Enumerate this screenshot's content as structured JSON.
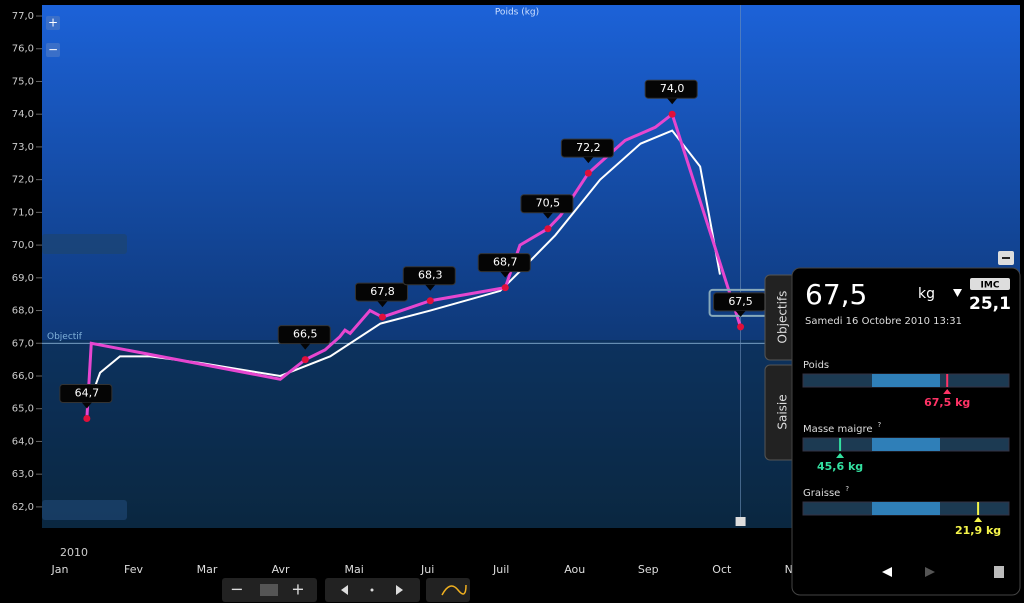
{
  "chart": {
    "type": "line",
    "title": "Poids (kg)",
    "year": "2010",
    "categories": [
      "Jan",
      "Fev",
      "Mar",
      "Avr",
      "Mai",
      "Jui",
      "Juil",
      "Aou",
      "Sep",
      "Oct",
      "Nov"
    ],
    "xlim": [
      0,
      13.3
    ],
    "ylim": [
      61.3,
      77.3
    ],
    "yticks": [
      {
        "value": 62,
        "label": "62,0"
      },
      {
        "value": 63,
        "label": "63,0"
      },
      {
        "value": 64,
        "label": "64,0"
      },
      {
        "value": 65,
        "label": "65,0"
      },
      {
        "value": 66,
        "label": "66,0"
      },
      {
        "value": 67,
        "label": "67,0"
      },
      {
        "value": 68,
        "label": "68,0"
      },
      {
        "value": 69,
        "label": "69,0"
      },
      {
        "value": 70,
        "label": "70,0"
      },
      {
        "value": 71,
        "label": "71,0"
      },
      {
        "value": 72,
        "label": "72,0"
      },
      {
        "value": 73,
        "label": "73,0"
      },
      {
        "value": 74,
        "label": "74,0"
      },
      {
        "value": 75,
        "label": "75,0"
      },
      {
        "value": 76,
        "label": "76,0"
      },
      {
        "value": 77,
        "label": "77,0"
      }
    ],
    "target": {
      "label": "Objectif",
      "value": 67
    },
    "series": [
      {
        "color": "#e646cf",
        "x": [
          0.61,
          0.67,
          3.24,
          3.58,
          3.85,
          4.05,
          4.12,
          4.19,
          4.46,
          4.63,
          5.28,
          6.3,
          6.5,
          6.88,
          7.05,
          7.43,
          7.93,
          8.34,
          8.57,
          9.5
        ],
        "values": [
          64.7,
          67.0,
          65.9,
          66.5,
          66.8,
          67.2,
          67.4,
          67.3,
          68.0,
          67.8,
          68.3,
          68.7,
          70.0,
          70.5,
          70.9,
          72.2,
          73.2,
          73.6,
          74.0,
          67.5
        ],
        "value_labels": [
          "64,7",
          null,
          null,
          "66,5",
          null,
          null,
          null,
          null,
          null,
          "67,8",
          "68,3",
          "68,7",
          null,
          "70,5",
          null,
          "72,2",
          null,
          null,
          "74,0",
          "67,5"
        ]
      },
      {
        "color": "#ffffff",
        "x": [
          0.61,
          0.79,
          1.06,
          1.47,
          2.15,
          3.24,
          3.92,
          4.6,
          5.28,
          6.23,
          6.5,
          6.98,
          7.59,
          8.14,
          8.57,
          8.95,
          9.22
        ],
        "values": [
          65.0,
          66.1,
          66.6,
          66.6,
          66.4,
          66.0,
          66.6,
          67.6,
          68.0,
          68.6,
          69.2,
          70.3,
          72.0,
          73.1,
          73.5,
          72.4,
          69.1
        ]
      }
    ]
  },
  "panel": {
    "weight": "67,5",
    "unit": "kg",
    "imc_label": "IMC",
    "imc": "25,1",
    "date": "Samedi 16 Octobre 2010 13:31",
    "tabs": [
      "Objectifs",
      "Saisie"
    ],
    "gauges": [
      {
        "label": "Poids",
        "value_label": "67,5 kg",
        "color": "#ff3366"
      },
      {
        "label": "Masse maigre",
        "hint": "?",
        "value_label": "45,6 kg",
        "color": "#33e0a0"
      },
      {
        "label": "Graisse",
        "hint": "?",
        "value_label": "21,9 kg",
        "color": "#f5f54a"
      }
    ]
  }
}
